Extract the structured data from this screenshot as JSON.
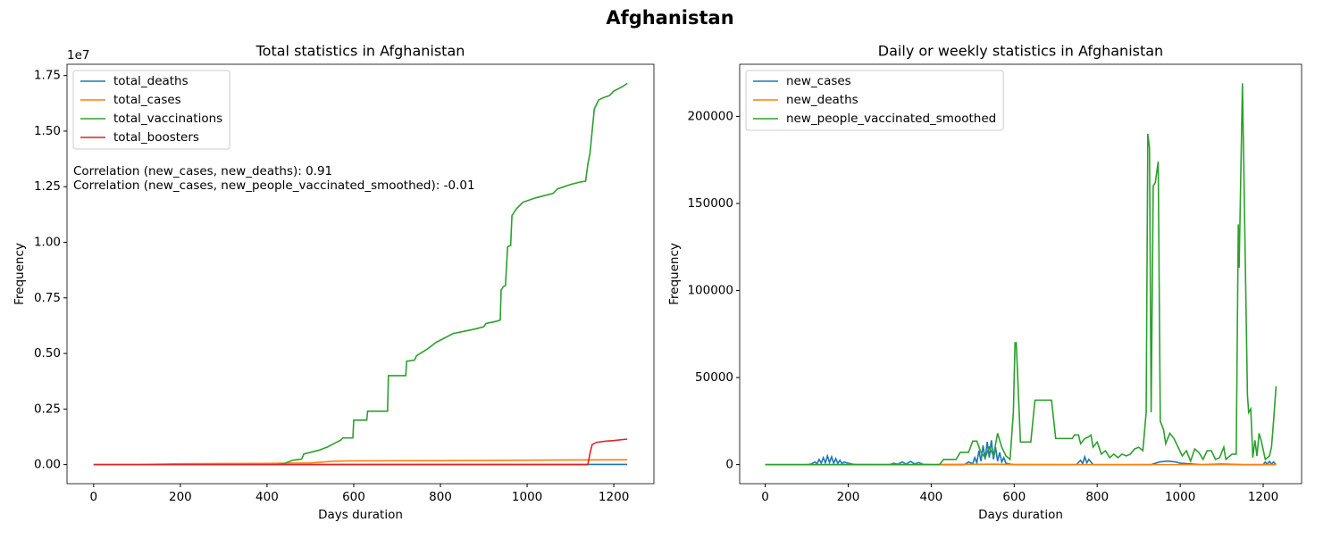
{
  "title": "Afghanistan",
  "chart_data": [
    {
      "type": "line",
      "title": "Total statistics in Afghanistan",
      "x_label": "Days duration",
      "y_label": "Frequency",
      "y_offset_text": "1e7",
      "legend": "upper left",
      "grid": false,
      "annotations": [
        "Correlation (new_cases, new_deaths): 0.91",
        "Correlation (new_cases, new_people_vaccinated_smoothed): -0.01"
      ],
      "xlim": [
        -61.5,
        1292.5
      ],
      "xticks": [
        0,
        200,
        400,
        600,
        800,
        1000,
        1200
      ],
      "ylim": [
        -857500,
        18007500
      ],
      "yticks": [
        {
          "value": 0,
          "label": "0.00"
        },
        {
          "value": 2500000,
          "label": "0.25"
        },
        {
          "value": 5000000,
          "label": "0.50"
        },
        {
          "value": 7500000,
          "label": "0.75"
        },
        {
          "value": 10000000,
          "label": "1.00"
        },
        {
          "value": 12500000,
          "label": "1.25"
        },
        {
          "value": 15000000,
          "label": "1.50"
        },
        {
          "value": 17500000,
          "label": "1.75"
        }
      ],
      "series": [
        {
          "name": "total_deaths",
          "color": "#1f77b4",
          "x": [
            0,
            100,
            200,
            300,
            400,
            500,
            600,
            800,
            1000,
            1231
          ],
          "values": [
            0,
            100,
            1500,
            2200,
            2500,
            3700,
            7000,
            7300,
            7700,
            7900
          ]
        },
        {
          "name": "total_cases",
          "color": "#ff7f0e",
          "x": [
            0,
            100,
            200,
            300,
            400,
            500,
            550,
            600,
            800,
            1000,
            1231
          ],
          "values": [
            0,
            5000,
            40000,
            50000,
            55000,
            75000,
            150000,
            170000,
            180000,
            200000,
            220000
          ]
        },
        {
          "name": "total_vaccinations",
          "color": "#2ca02c",
          "x": [
            0,
            420,
            440,
            460,
            480,
            485,
            500,
            520,
            540,
            555,
            570,
            575,
            598,
            600,
            630,
            632,
            678,
            680,
            720,
            722,
            740,
            745,
            770,
            790,
            810,
            830,
            880,
            900,
            905,
            930,
            938,
            940,
            945,
            950,
            955,
            962,
            965,
            975,
            990,
            1020,
            1060,
            1070,
            1100,
            1120,
            1135,
            1140,
            1145,
            1150,
            1155,
            1165,
            1175,
            1190,
            1200,
            1220,
            1231
          ],
          "values": [
            0,
            0,
            50000,
            200000,
            250000,
            480000,
            550000,
            650000,
            800000,
            950000,
            1100000,
            1200000,
            1200000,
            2000000,
            2000000,
            2400000,
            2400000,
            4000000,
            4000000,
            4650000,
            4700000,
            4900000,
            5200000,
            5500000,
            5700000,
            5900000,
            6100000,
            6200000,
            6350000,
            6450000,
            6500000,
            7850000,
            8000000,
            8050000,
            9800000,
            9850000,
            11200000,
            11500000,
            11800000,
            12000000,
            12200000,
            12400000,
            12600000,
            12700000,
            12750000,
            13500000,
            14000000,
            15000000,
            16000000,
            16400000,
            16500000,
            16600000,
            16800000,
            17000000,
            17150000
          ]
        },
        {
          "name": "total_boosters",
          "color": "#d62728",
          "x": [
            0,
            1140,
            1145,
            1150,
            1160,
            1180,
            1200,
            1231
          ],
          "values": [
            0,
            0,
            500000,
            900000,
            1000000,
            1050000,
            1080000,
            1150000
          ]
        }
      ]
    },
    {
      "type": "line",
      "title": "Daily or weekly statistics in Afghanistan",
      "x_label": "Days duration",
      "y_label": "Frequency",
      "legend": "upper left",
      "grid": false,
      "xlim": [
        -61.5,
        1292.5
      ],
      "xticks": [
        0,
        200,
        400,
        600,
        800,
        1000,
        1200
      ],
      "ylim": [
        -10950,
        229950
      ],
      "yticks": [
        0,
        50000,
        100000,
        150000,
        200000
      ],
      "series": [
        {
          "name": "new_cases",
          "color": "#1f77b4",
          "x": [
            0,
            100,
            110,
            120,
            125,
            130,
            135,
            140,
            145,
            150,
            155,
            160,
            165,
            170,
            175,
            180,
            185,
            190,
            200,
            210,
            220,
            300,
            310,
            320,
            330,
            340,
            350,
            360,
            370,
            380,
            400,
            480,
            490,
            500,
            505,
            510,
            515,
            520,
            525,
            530,
            535,
            540,
            545,
            550,
            555,
            560,
            565,
            570,
            575,
            580,
            590,
            600,
            750,
            760,
            765,
            770,
            775,
            780,
            790,
            930,
            950,
            970,
            990,
            1000,
            1050,
            1100,
            1150,
            1200,
            1205,
            1210,
            1215,
            1220,
            1225,
            1231
          ],
          "values": [
            0,
            0,
            300,
            1500,
            500,
            3000,
            800,
            4000,
            1000,
            5000,
            1200,
            4500,
            900,
            3500,
            700,
            2500,
            500,
            1500,
            800,
            300,
            0,
            0,
            800,
            200,
            1500,
            300,
            1800,
            400,
            1200,
            200,
            0,
            0,
            1500,
            500,
            4000,
            1000,
            8000,
            2000,
            11000,
            3000,
            13000,
            4000,
            14000,
            3000,
            10000,
            2000,
            7000,
            1500,
            4000,
            800,
            300,
            0,
            0,
            2500,
            500,
            4500,
            1000,
            3000,
            0,
            0,
            1500,
            2000,
            1500,
            800,
            0,
            300,
            0,
            0,
            1500,
            200,
            1800,
            300,
            1500,
            0
          ]
        },
        {
          "name": "new_deaths",
          "color": "#ff7f0e",
          "x": [
            0,
            100,
            200,
            400,
            500,
            550,
            600,
            800,
            1000,
            1231
          ],
          "values": [
            0,
            5,
            80,
            20,
            150,
            250,
            20,
            5,
            3,
            0
          ]
        },
        {
          "name": "new_people_vaccinated_smoothed",
          "color": "#2ca02c",
          "x": [
            0,
            420,
            430,
            460,
            470,
            490,
            500,
            510,
            520,
            530,
            540,
            550,
            560,
            570,
            580,
            590,
            598,
            602,
            605,
            615,
            640,
            650,
            690,
            700,
            740,
            745,
            755,
            760,
            770,
            780,
            785,
            790,
            800,
            810,
            820,
            830,
            840,
            850,
            860,
            870,
            880,
            890,
            900,
            910,
            918,
            922,
            926,
            930,
            935,
            940,
            947,
            952,
            960,
            965,
            975,
            985,
            995,
            1005,
            1015,
            1025,
            1035,
            1045,
            1055,
            1065,
            1075,
            1085,
            1095,
            1105,
            1110,
            1125,
            1135,
            1140,
            1142,
            1150,
            1162,
            1165,
            1170,
            1175,
            1180,
            1185,
            1190,
            1195,
            1205,
            1215,
            1220,
            1225,
            1231
          ],
          "values": [
            0,
            0,
            3000,
            3000,
            7000,
            7000,
            13500,
            13500,
            7000,
            4000,
            10000,
            5000,
            18000,
            10000,
            5000,
            3000,
            30000,
            70000,
            70000,
            13000,
            13000,
            37000,
            37000,
            15000,
            15000,
            17000,
            17000,
            12000,
            15000,
            16000,
            17000,
            10000,
            13000,
            6000,
            8000,
            4000,
            6000,
            4000,
            6000,
            5000,
            6000,
            9000,
            10000,
            8000,
            30000,
            190000,
            182000,
            30000,
            160000,
            162000,
            174000,
            25000,
            20000,
            12000,
            18000,
            15000,
            10000,
            5000,
            8000,
            2000,
            9000,
            7000,
            3000,
            8000,
            8000,
            3000,
            4000,
            10000,
            3000,
            6000,
            6000,
            138000,
            113000,
            219000,
            40000,
            30000,
            32000,
            4000,
            14000,
            5000,
            18000,
            14000,
            3000,
            5000,
            10000,
            25000,
            45000
          ]
        }
      ]
    }
  ]
}
